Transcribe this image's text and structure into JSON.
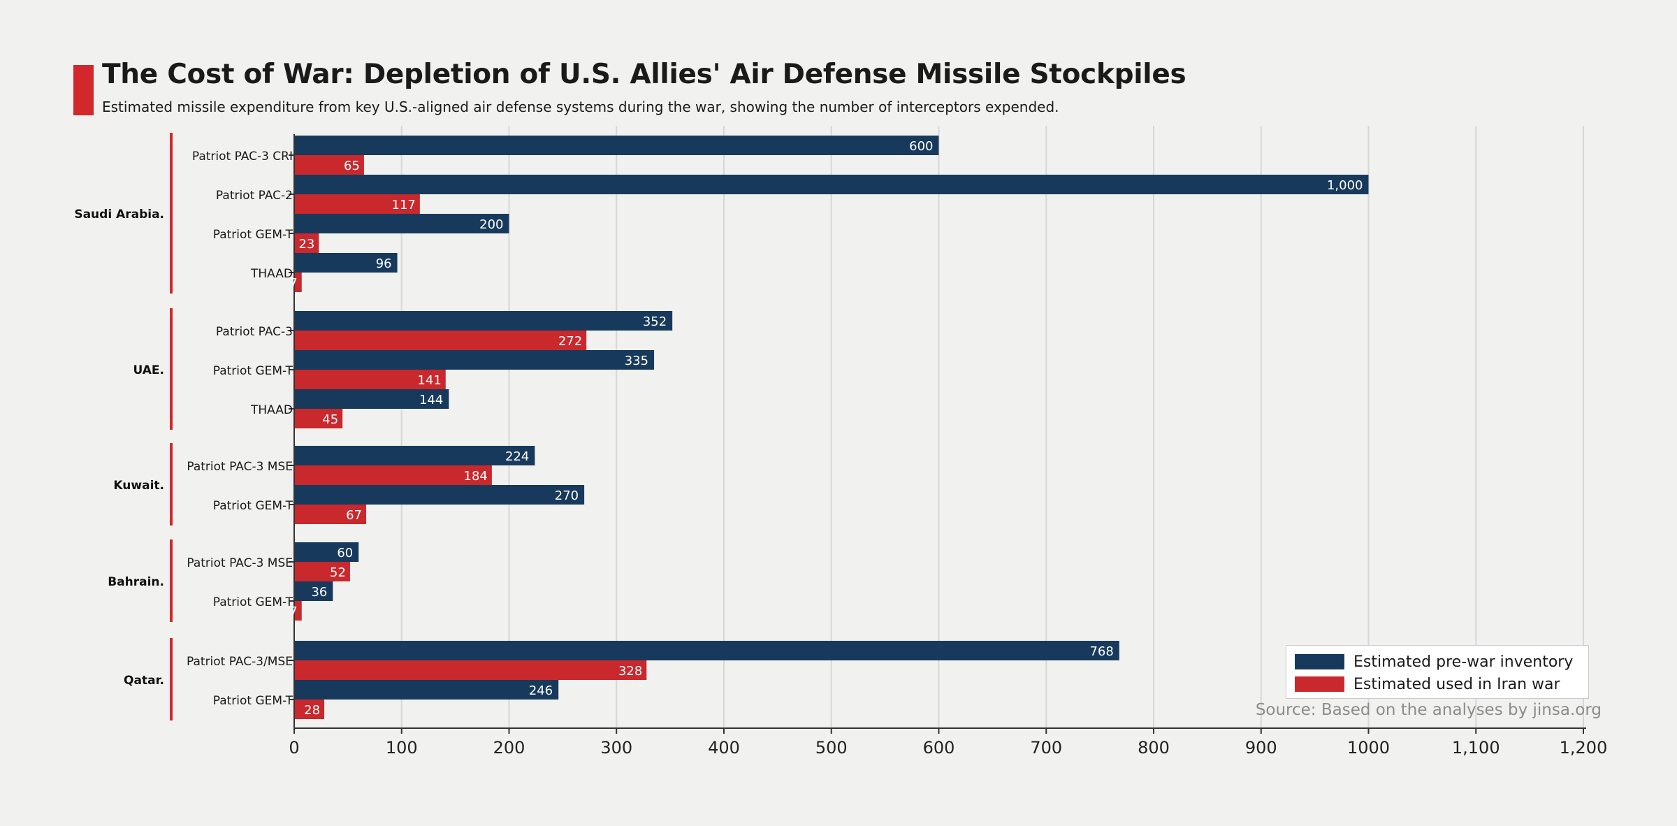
{
  "colors": {
    "prewar": "#173a5c",
    "used": "#c9282d",
    "accent": "#d3282b",
    "grid": "#d7d7d7",
    "group_line": "#d3282b"
  },
  "legend": {
    "prewar_label": "Estimated pre-war inventory",
    "used_label": "Estimated used in Iran war"
  },
  "source": "Source:  Based on the analyses by jinsa.org",
  "chart_data": {
    "type": "bar",
    "orientation": "horizontal",
    "title": "The Cost of War: Depletion of U.S. Allies' Air Defense Missile Stockpiles",
    "subtitle": "Estimated missile expenditure from key U.S.-aligned air defense systems during the war, showing the number of interceptors expended.",
    "xlim": [
      0,
      1200
    ],
    "xticks": [
      "0",
      "100",
      "200",
      "300",
      "400",
      "500",
      "600",
      "700",
      "800",
      "900",
      "1000",
      "1,100",
      "1,200"
    ],
    "grid": "vertical",
    "legend_position": "bottom-right",
    "series_names": [
      "Estimated pre-war inventory",
      "Estimated used in Iran war"
    ],
    "groups": [
      {
        "country": "Saudi Arabia.",
        "systems": [
          {
            "name": "Patriot PAC-3 CRI",
            "prewar": 600,
            "prewar_label": "600",
            "used": 65,
            "used_label": "65"
          },
          {
            "name": "Patriot PAC-2",
            "prewar": 1000,
            "prewar_label": "1,000",
            "used": 117,
            "used_label": "117"
          },
          {
            "name": "Patriot GEM-T",
            "prewar": 200,
            "prewar_label": "200",
            "used": 23,
            "used_label": "23"
          },
          {
            "name": "THAAD",
            "prewar": 96,
            "prewar_label": "96",
            "used": 7,
            "used_label": "7"
          }
        ]
      },
      {
        "country": "UAE.",
        "systems": [
          {
            "name": "Patriot PAC-3",
            "prewar": 352,
            "prewar_label": "352",
            "used": 272,
            "used_label": "272"
          },
          {
            "name": "Patriot GEM-T",
            "prewar": 335,
            "prewar_label": "335",
            "used": 141,
            "used_label": "141"
          },
          {
            "name": "THAAD",
            "prewar": 144,
            "prewar_label": "144",
            "used": 45,
            "used_label": "45"
          }
        ]
      },
      {
        "country": "Kuwait.",
        "systems": [
          {
            "name": "Patriot PAC-3 MSE",
            "prewar": 224,
            "prewar_label": "224",
            "used": 184,
            "used_label": "184"
          },
          {
            "name": "Patriot GEM-T",
            "prewar": 270,
            "prewar_label": "270",
            "used": 67,
            "used_label": "67"
          }
        ]
      },
      {
        "country": "Bahrain.",
        "systems": [
          {
            "name": "Patriot PAC-3 MSE",
            "prewar": 60,
            "prewar_label": "60",
            "used": 52,
            "used_label": "52"
          },
          {
            "name": "Patriot GEM-T",
            "prewar": 36,
            "prewar_label": "36",
            "used": 7,
            "used_label": "7"
          }
        ]
      },
      {
        "country": "Qatar.",
        "systems": [
          {
            "name": "Patriot PAC-3/MSE",
            "prewar": 768,
            "prewar_label": "768",
            "used": 328,
            "used_label": "328"
          },
          {
            "name": "Patriot GEM-T",
            "prewar": 246,
            "prewar_label": "246",
            "used": 28,
            "used_label": "28"
          }
        ]
      }
    ]
  }
}
